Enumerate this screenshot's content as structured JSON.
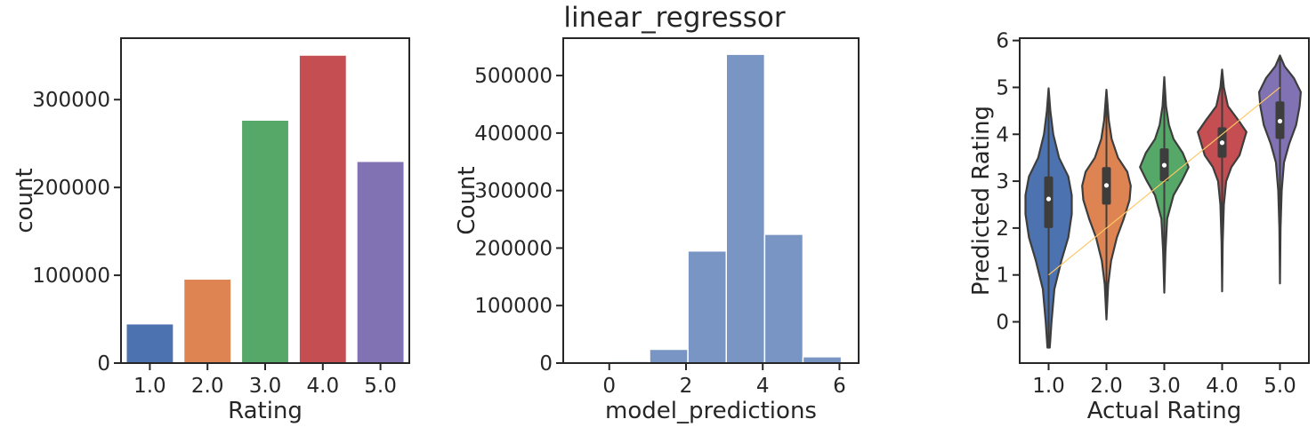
{
  "suptitle": "linear_regressor",
  "chart_data": [
    {
      "type": "bar",
      "categories": [
        "1.0",
        "2.0",
        "3.0",
        "4.0",
        "5.0"
      ],
      "values": [
        44000,
        95000,
        276000,
        350000,
        229000
      ],
      "colors": [
        "#4c72b0",
        "#dd8452",
        "#55a868",
        "#c44e52",
        "#8172b3"
      ],
      "xlabel": "Rating",
      "ylabel": "count",
      "ylim": [
        0,
        370000
      ],
      "yticks": [
        0,
        100000,
        200000,
        300000
      ],
      "ytick_labels": [
        "0",
        "100000",
        "200000",
        "300000"
      ]
    },
    {
      "type": "bar",
      "subtype": "histogram",
      "bins": [
        {
          "x0": -0.95,
          "x1": 0.05,
          "count": 0
        },
        {
          "x0": 0.05,
          "x1": 1.05,
          "count": 3000
        },
        {
          "x0": 1.05,
          "x1": 2.05,
          "count": 24000
        },
        {
          "x0": 2.05,
          "x1": 3.05,
          "count": 195000
        },
        {
          "x0": 3.05,
          "x1": 4.05,
          "count": 537000
        },
        {
          "x0": 4.05,
          "x1": 5.05,
          "count": 224000
        },
        {
          "x0": 5.05,
          "x1": 6.05,
          "count": 11000
        }
      ],
      "color": "#4c72b0",
      "xlabel": "model_predictions",
      "ylabel": "Count",
      "xlim": [
        -1.2,
        6.5
      ],
      "ylim": [
        0,
        565000
      ],
      "xticks": [
        0,
        2,
        4,
        6
      ],
      "xtick_labels": [
        "0",
        "2",
        "4",
        "6"
      ],
      "yticks": [
        0,
        100000,
        200000,
        300000,
        400000,
        500000
      ],
      "ytick_labels": [
        "0",
        "100000",
        "200000",
        "300000",
        "400000",
        "500000"
      ]
    },
    {
      "type": "violin",
      "categories": [
        "1.0",
        "2.0",
        "3.0",
        "4.0",
        "5.0"
      ],
      "colors": [
        "#4c72b0",
        "#dd8452",
        "#55a868",
        "#c44e52",
        "#8172b3"
      ],
      "violins": [
        {
          "min": -0.55,
          "max": 4.98,
          "q1": 2.0,
          "median": 2.62,
          "q3": 3.1,
          "profile": [
            [
              -0.55,
              0.02
            ],
            [
              0.0,
              0.05
            ],
            [
              0.7,
              0.1
            ],
            [
              1.3,
              0.22
            ],
            [
              1.8,
              0.34
            ],
            [
              2.3,
              0.4
            ],
            [
              2.7,
              0.4
            ],
            [
              3.1,
              0.34
            ],
            [
              3.5,
              0.18
            ],
            [
              4.0,
              0.08
            ],
            [
              4.5,
              0.03
            ],
            [
              4.98,
              0.0
            ]
          ]
        },
        {
          "min": 0.05,
          "max": 4.95,
          "q1": 2.5,
          "median": 2.91,
          "q3": 3.3,
          "profile": [
            [
              0.05,
              0.0
            ],
            [
              0.8,
              0.03
            ],
            [
              1.3,
              0.08
            ],
            [
              1.8,
              0.18
            ],
            [
              2.2,
              0.3
            ],
            [
              2.6,
              0.4
            ],
            [
              2.9,
              0.42
            ],
            [
              3.2,
              0.36
            ],
            [
              3.5,
              0.2
            ],
            [
              3.9,
              0.09
            ],
            [
              4.3,
              0.04
            ],
            [
              4.95,
              0.0
            ]
          ]
        },
        {
          "min": 0.62,
          "max": 5.22,
          "q1": 3.0,
          "median": 3.34,
          "q3": 3.7,
          "profile": [
            [
              0.62,
              0.0
            ],
            [
              1.5,
              0.02
            ],
            [
              2.2,
              0.05
            ],
            [
              2.7,
              0.16
            ],
            [
              3.0,
              0.3
            ],
            [
              3.3,
              0.42
            ],
            [
              3.6,
              0.32
            ],
            [
              3.9,
              0.16
            ],
            [
              4.2,
              0.08
            ],
            [
              4.6,
              0.03
            ],
            [
              5.22,
              0.0
            ]
          ]
        },
        {
          "min": 0.65,
          "max": 5.38,
          "q1": 3.5,
          "median": 3.82,
          "q3": 4.15,
          "profile": [
            [
              0.65,
              0.0
            ],
            [
              1.7,
              0.01
            ],
            [
              2.5,
              0.03
            ],
            [
              3.0,
              0.07
            ],
            [
              3.3,
              0.16
            ],
            [
              3.55,
              0.3
            ],
            [
              3.8,
              0.36
            ],
            [
              4.05,
              0.42
            ],
            [
              4.3,
              0.28
            ],
            [
              4.6,
              0.1
            ],
            [
              5.0,
              0.03
            ],
            [
              5.38,
              0.0
            ]
          ]
        },
        {
          "min": 0.82,
          "max": 5.68,
          "q1": 3.9,
          "median": 4.28,
          "q3": 4.7,
          "profile": [
            [
              0.82,
              0.0
            ],
            [
              2.0,
              0.01
            ],
            [
              2.8,
              0.03
            ],
            [
              3.4,
              0.07
            ],
            [
              3.8,
              0.16
            ],
            [
              4.2,
              0.28
            ],
            [
              4.6,
              0.34
            ],
            [
              4.9,
              0.36
            ],
            [
              5.2,
              0.24
            ],
            [
              5.45,
              0.08
            ],
            [
              5.68,
              0.0
            ]
          ]
        }
      ],
      "line": {
        "x": [
          "1.0",
          "5.0"
        ],
        "y": [
          1.0,
          5.0
        ],
        "color": "#ffc766"
      },
      "xlabel": "Actual Rating",
      "ylabel": "Predicted Rating",
      "ylim": [
        -0.88,
        6.05
      ],
      "yticks": [
        0,
        1,
        2,
        3,
        4,
        5,
        6
      ],
      "ytick_labels": [
        "0",
        "1",
        "2",
        "3",
        "4",
        "5",
        "6"
      ]
    }
  ]
}
